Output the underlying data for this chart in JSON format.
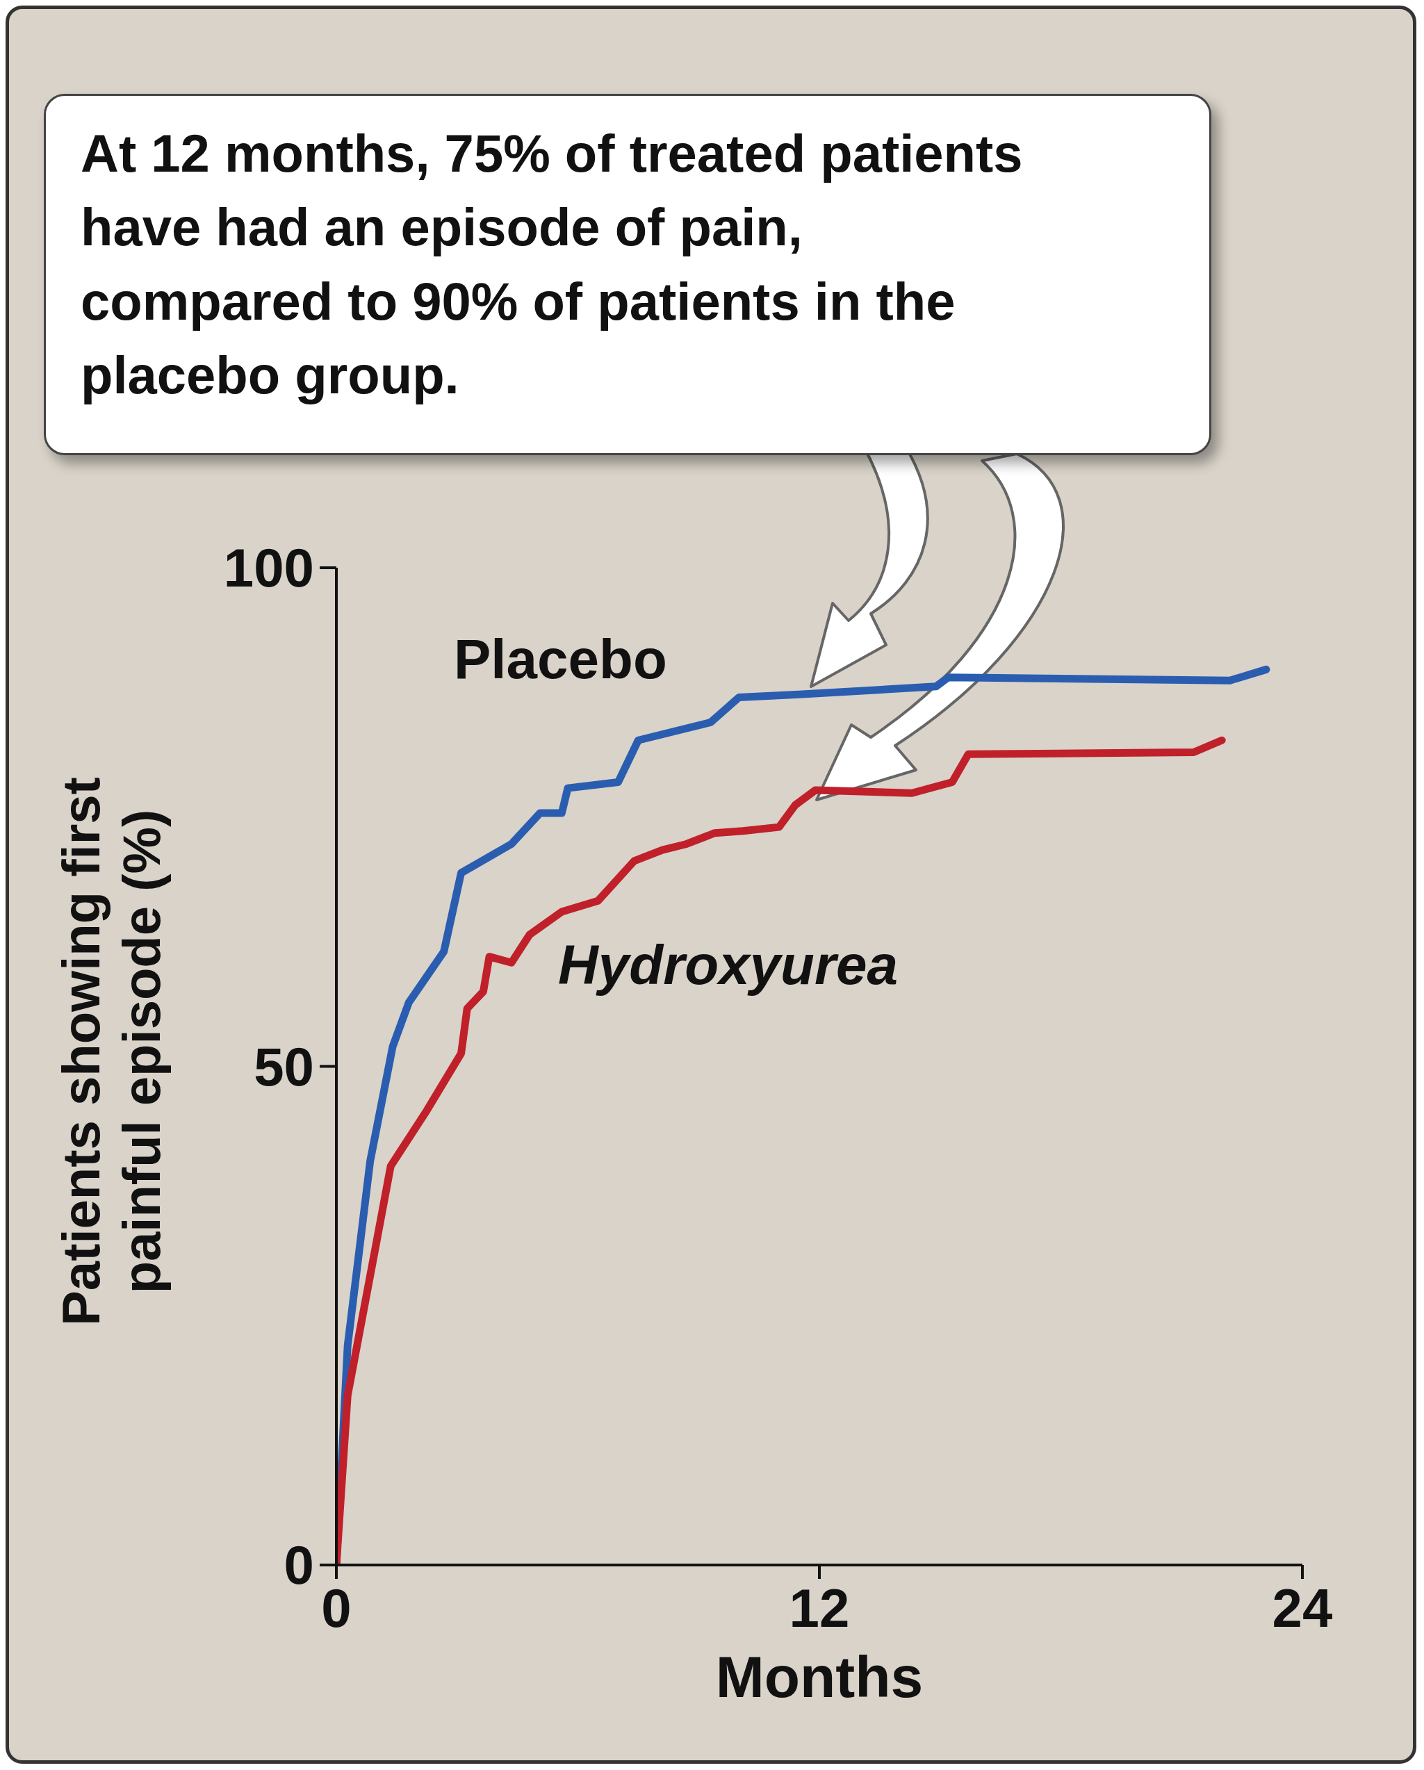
{
  "chart_data": {
    "type": "line",
    "xlabel": "Months",
    "ylabel": "Patients showing first painful episode (%)",
    "xlim": [
      0,
      24
    ],
    "ylim": [
      0,
      100
    ],
    "xticks": [
      0,
      12,
      24
    ],
    "yticks": [
      0,
      50,
      100
    ],
    "line_style": "solid",
    "annotations": [
      "At 12 months, 75% of treated patients have had an episode of pain, compared to 90% of patients in the placebo group."
    ],
    "series": [
      {
        "name": "Placebo",
        "color": "#2a5db0",
        "x": [
          0,
          0.28,
          0.84,
          1.4,
          1.8,
          2.67,
          3.1,
          4.35,
          5.06,
          5.6,
          5.75,
          7.0,
          7.5,
          9.3,
          10,
          11.5,
          14.9,
          15.2,
          22.2,
          23.1
        ],
        "values": [
          0,
          22,
          40.5,
          52,
          56.4,
          61.5,
          69.4,
          72.3,
          75.4,
          75.4,
          77.9,
          78.5,
          82.7,
          84.5,
          87,
          87.3,
          88.1,
          89,
          88.7,
          89.8
        ]
      },
      {
        "name": "Hydroxyurea",
        "color": "#c0202a",
        "x": [
          0,
          0.28,
          0.84,
          1.35,
          2.25,
          3.1,
          3.25,
          3.65,
          3.8,
          4.35,
          4.8,
          5.6,
          6.5,
          7.4,
          8.1,
          8.7,
          9.4,
          10.1,
          11,
          11.4,
          11.9,
          14.3,
          15.3,
          15.7,
          21.3,
          22
        ],
        "values": [
          0,
          17,
          29,
          40,
          45.6,
          51.3,
          55.8,
          57.5,
          61,
          60.4,
          63.2,
          65.5,
          66.6,
          70.6,
          71.7,
          72.3,
          73.4,
          73.6,
          74,
          76.2,
          77.7,
          77.4,
          78.5,
          81.3,
          81.5,
          82.7
        ]
      }
    ]
  }
}
